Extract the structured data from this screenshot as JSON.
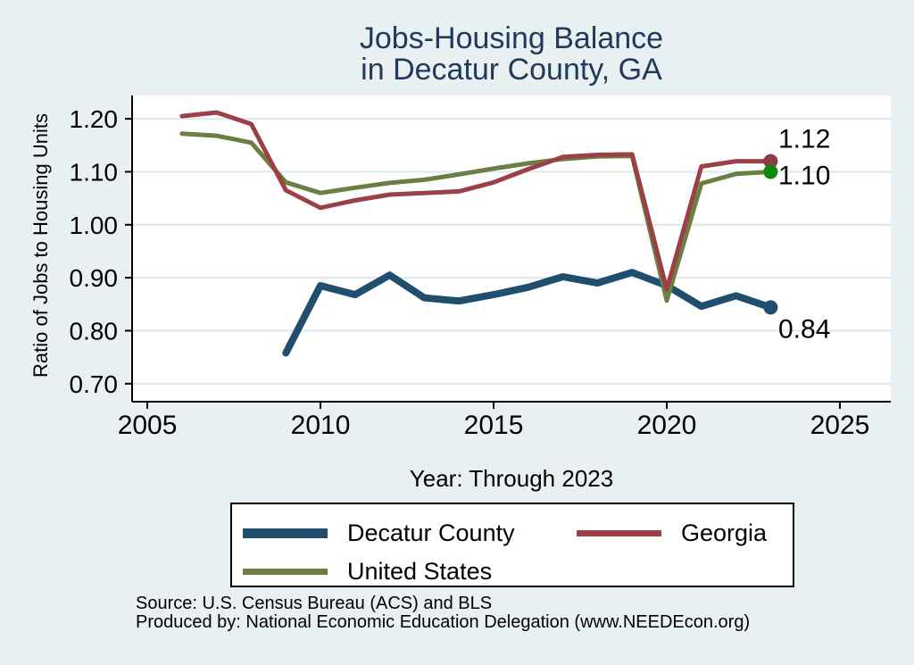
{
  "title": {
    "line1": "Jobs-Housing Balance",
    "line2": "in Decatur County, GA"
  },
  "axes": {
    "y_label": "Ratio of Jobs to Housing Units",
    "x_label": "Year: Through 2023"
  },
  "legend": {
    "items": [
      {
        "label": "Decatur County",
        "color": "#1f4e6e",
        "thickness": 11
      },
      {
        "label": "Georgia",
        "color": "#9c4047",
        "thickness": 7
      },
      {
        "label": "United States",
        "color": "#6b8040",
        "thickness": 7
      }
    ]
  },
  "footer": {
    "source": "Source: U.S. Census Bureau (ACS) and BLS",
    "produced_by": "Produced by: National Economic Education Delegation (www.NEEDEcon.org)"
  },
  "colors": {
    "background": "#e8f0f2",
    "plot_background": "#ffffff",
    "grid": "#dce9ec",
    "axis": "#000000",
    "title": "#20395c",
    "text": "#000000"
  },
  "chart_data": {
    "type": "line",
    "title": "Jobs-Housing Balance in Decatur County, GA",
    "xlabel": "Year: Through 2023",
    "ylabel": "Ratio of Jobs to Housing Units",
    "grid": true,
    "legend_position": "bottom",
    "x": [
      2006,
      2007,
      2008,
      2009,
      2010,
      2011,
      2012,
      2013,
      2014,
      2015,
      2016,
      2017,
      2018,
      2019,
      2020,
      2021,
      2022,
      2023
    ],
    "x_ticks": [
      2005,
      2010,
      2015,
      2020,
      2025
    ],
    "y_ticks": [
      0.7,
      0.8,
      0.9,
      1.0,
      1.1,
      1.2
    ],
    "xlim": [
      2004.56,
      2026.47
    ],
    "ylim": [
      0.666,
      1.244
    ],
    "series": [
      {
        "name": "Decatur County",
        "color": "#1f4e6e",
        "line_width": 8,
        "marker_color": "#1f4e6e",
        "end_label": "0.84",
        "end_label_offset": 34,
        "values": [
          null,
          null,
          null,
          0.758,
          0.885,
          0.868,
          0.905,
          0.862,
          0.856,
          0.868,
          0.882,
          0.902,
          0.89,
          0.91,
          0.885,
          0.846,
          0.866,
          0.844
        ]
      },
      {
        "name": "Georgia",
        "color": "#9c4047",
        "line_width": 5,
        "marker_color": "#8e3b44",
        "end_label": "1.12",
        "end_label_offset": -15,
        "values": [
          1.205,
          1.212,
          1.19,
          1.065,
          1.032,
          1.046,
          1.057,
          1.06,
          1.063,
          1.08,
          1.105,
          1.128,
          1.132,
          1.133,
          0.878,
          1.11,
          1.12,
          1.12
        ]
      },
      {
        "name": "United States",
        "color": "#6b8040",
        "line_width": 5,
        "marker_color": "#0b8a0b",
        "end_label": "1.10",
        "end_label_offset": 14,
        "values": [
          1.172,
          1.168,
          1.155,
          1.08,
          1.06,
          1.07,
          1.079,
          1.085,
          1.095,
          1.106,
          1.116,
          1.124,
          1.129,
          1.13,
          0.857,
          1.078,
          1.096,
          1.1
        ]
      }
    ]
  }
}
